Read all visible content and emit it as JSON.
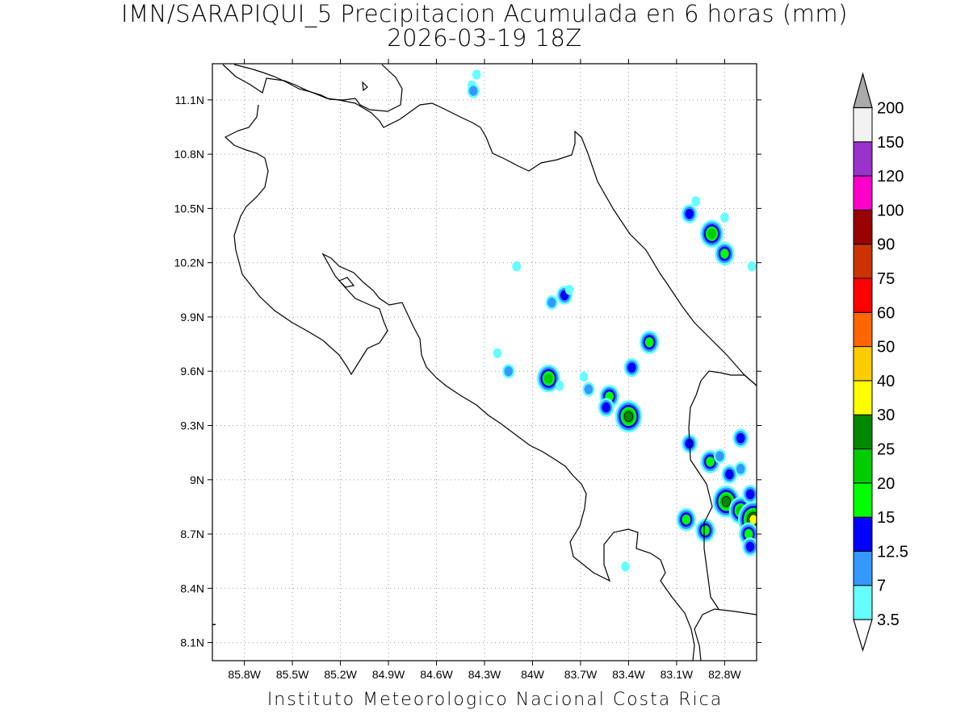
{
  "title": {
    "line1": "IMN/SARAPIQUI_5 Precipitacion Acumulada en 6 horas (mm)",
    "line2": "2026-03-19 18Z"
  },
  "map": {
    "lon_range": [
      -86.0,
      -82.6
    ],
    "lat_range": [
      8.0,
      11.3
    ],
    "grid": "dotted",
    "x_ticks": [
      "85.8W",
      "85.5W",
      "85.2W",
      "84.9W",
      "84.6W",
      "84.3W",
      "84W",
      "83.7W",
      "83.4W",
      "83.1W",
      "82.8W"
    ],
    "x_tick_values": [
      -85.8,
      -85.5,
      -85.2,
      -84.9,
      -84.6,
      -84.3,
      -84.0,
      -83.7,
      -83.4,
      -83.1,
      -82.8
    ],
    "y_ticks": [
      "11.1N",
      "10.8N",
      "10.5N",
      "10.2N",
      "9.9N",
      "9.6N",
      "9.3N",
      "9N",
      "8.7N",
      "8.4N",
      "8.1N"
    ],
    "y_tick_values": [
      11.1,
      10.8,
      10.5,
      10.2,
      9.9,
      9.6,
      9.3,
      9.0,
      8.7,
      8.4,
      8.1
    ],
    "precip_cells": [
      {
        "lon": -84.38,
        "lat": 11.18,
        "level": 0
      },
      {
        "lon": -84.35,
        "lat": 11.24,
        "level": 0
      },
      {
        "lon": -84.37,
        "lat": 11.15,
        "level": 1
      },
      {
        "lon": -84.1,
        "lat": 10.18,
        "level": 0
      },
      {
        "lon": -83.88,
        "lat": 9.98,
        "level": 1
      },
      {
        "lon": -83.8,
        "lat": 10.02,
        "level": 2
      },
      {
        "lon": -83.77,
        "lat": 10.05,
        "level": 0
      },
      {
        "lon": -84.22,
        "lat": 9.7,
        "level": 0
      },
      {
        "lon": -84.15,
        "lat": 9.6,
        "level": 1
      },
      {
        "lon": -83.9,
        "lat": 9.56,
        "level": 4
      },
      {
        "lon": -83.83,
        "lat": 9.52,
        "level": 0
      },
      {
        "lon": -83.68,
        "lat": 9.57,
        "level": 0
      },
      {
        "lon": -83.65,
        "lat": 9.5,
        "level": 1
      },
      {
        "lon": -83.52,
        "lat": 9.46,
        "level": 3
      },
      {
        "lon": -83.54,
        "lat": 9.4,
        "level": 2
      },
      {
        "lon": -83.4,
        "lat": 9.35,
        "level": 5
      },
      {
        "lon": -83.38,
        "lat": 9.62,
        "level": 2
      },
      {
        "lon": -83.27,
        "lat": 9.76,
        "level": 3
      },
      {
        "lon": -83.02,
        "lat": 10.47,
        "level": 2
      },
      {
        "lon": -82.98,
        "lat": 10.54,
        "level": 0
      },
      {
        "lon": -82.88,
        "lat": 10.36,
        "level": 4
      },
      {
        "lon": -82.8,
        "lat": 10.25,
        "level": 3
      },
      {
        "lon": -82.8,
        "lat": 10.45,
        "level": 0
      },
      {
        "lon": -82.63,
        "lat": 10.18,
        "level": 0
      },
      {
        "lon": -83.02,
        "lat": 9.2,
        "level": 2
      },
      {
        "lon": -82.89,
        "lat": 9.1,
        "level": 3
      },
      {
        "lon": -82.83,
        "lat": 9.13,
        "level": 1
      },
      {
        "lon": -82.7,
        "lat": 9.23,
        "level": 2
      },
      {
        "lon": -82.77,
        "lat": 9.03,
        "level": 2
      },
      {
        "lon": -82.7,
        "lat": 9.06,
        "level": 1
      },
      {
        "lon": -82.79,
        "lat": 8.88,
        "level": 5
      },
      {
        "lon": -82.7,
        "lat": 8.83,
        "level": 4
      },
      {
        "lon": -82.64,
        "lat": 8.92,
        "level": 2
      },
      {
        "lon": -82.62,
        "lat": 8.78,
        "level": 6
      },
      {
        "lon": -82.65,
        "lat": 8.7,
        "level": 3
      },
      {
        "lon": -82.64,
        "lat": 8.63,
        "level": 2
      },
      {
        "lon": -83.04,
        "lat": 8.78,
        "level": 3
      },
      {
        "lon": -82.92,
        "lat": 8.72,
        "level": 3
      },
      {
        "lon": -83.42,
        "lat": 8.52,
        "level": 0
      }
    ]
  },
  "legend": {
    "labels": [
      "3.5",
      "7",
      "12.5",
      "15",
      "20",
      "25",
      "30",
      "40",
      "50",
      "60",
      "75",
      "90",
      "100",
      "120",
      "150",
      "200"
    ],
    "colors": [
      "#ffffff",
      "#66ffff",
      "#3399ff",
      "#0000ff",
      "#00ff00",
      "#00cc00",
      "#008800",
      "#ffff00",
      "#ffcc00",
      "#ff6600",
      "#ff0000",
      "#cc3300",
      "#990000",
      "#ff00cc",
      "#9933cc",
      "#f2f2f2",
      "#aaaaaa"
    ]
  },
  "footer": "Instituto Meteorologico Nacional Costa Rica"
}
